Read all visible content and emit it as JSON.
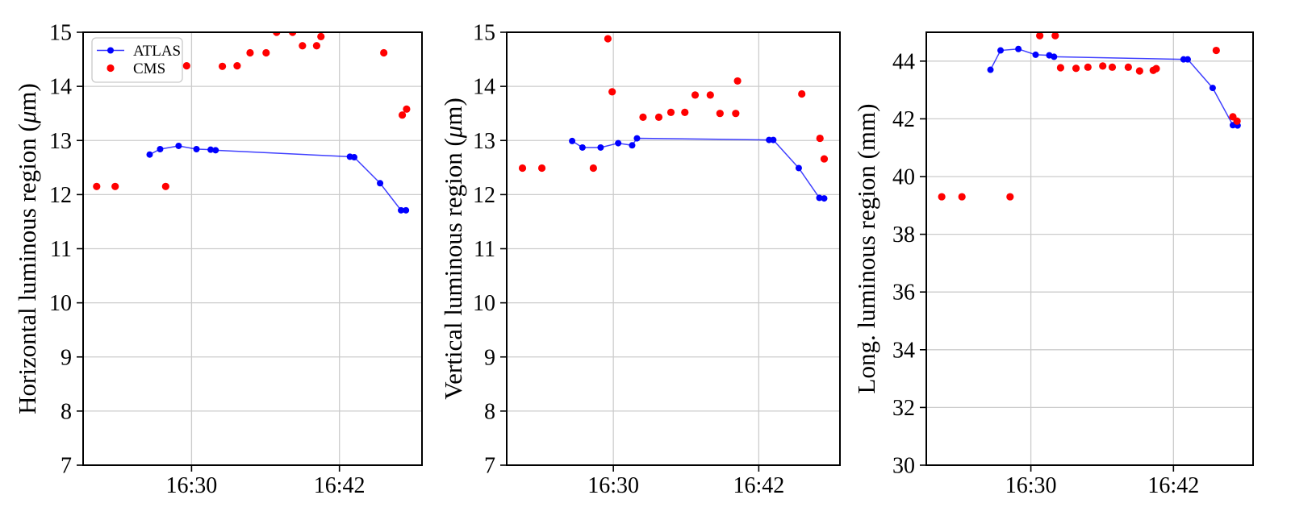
{
  "figure": {
    "background": "#ffffff",
    "grid_color": "#cccccc",
    "spine_color": "#000000",
    "atlas_color": "#0000ff",
    "cms_color": "#ff0000",
    "x_unit": "time (16:MM)",
    "legend": {
      "entries": [
        {
          "label": "ATLAS",
          "marker": "line-dot",
          "color": "#0000ff"
        },
        {
          "label": "CMS",
          "marker": "dot",
          "color": "#ff0000"
        }
      ]
    }
  },
  "chart_data": [
    {
      "type": "scatter",
      "title": "",
      "ylabel": "Horizontal luminous region (μm)",
      "xlabel": "",
      "ylim": [
        7,
        15
      ],
      "yticks": [
        7,
        8,
        9,
        10,
        11,
        12,
        13,
        14,
        15
      ],
      "xlim_minutes_after_1600": [
        21.2,
        48.7
      ],
      "xticks": [
        {
          "label": "16:30",
          "minutes": 30
        },
        {
          "label": "16:42",
          "minutes": 42
        }
      ],
      "grid": true,
      "legend_position": "upper-left",
      "series": [
        {
          "name": "ATLAS",
          "style": "line+scatter",
          "color": "#0000ff",
          "x": [
            26.6,
            27.45,
            28.95,
            30.4,
            31.55,
            31.95,
            42.85,
            43.2,
            45.3,
            47.0,
            47.4
          ],
          "y": [
            12.74,
            12.84,
            12.9,
            12.84,
            12.83,
            12.82,
            12.7,
            12.69,
            12.21,
            11.71,
            11.71
          ]
        },
        {
          "name": "CMS",
          "style": "scatter",
          "color": "#ff0000",
          "x": [
            22.3,
            23.8,
            27.9,
            29.6,
            32.5,
            33.7,
            34.75,
            36.05,
            36.9,
            38.2,
            39.0,
            40.15,
            40.5,
            45.6,
            47.1,
            47.45
          ],
          "y": [
            12.15,
            12.15,
            12.15,
            14.38,
            14.37,
            14.38,
            14.62,
            14.62,
            15.0,
            15.0,
            14.75,
            14.75,
            14.92,
            14.62,
            13.47,
            13.58
          ]
        }
      ]
    },
    {
      "type": "scatter",
      "title": "",
      "ylabel": "Vertical luminous region (μm)",
      "xlabel": "",
      "ylim": [
        7,
        15
      ],
      "yticks": [
        7,
        8,
        9,
        10,
        11,
        12,
        13,
        14,
        15
      ],
      "xlim_minutes_after_1600": [
        21.2,
        48.7
      ],
      "xticks": [
        {
          "label": "16:30",
          "minutes": 30
        },
        {
          "label": "16:42",
          "minutes": 42
        }
      ],
      "grid": true,
      "legend_position": "none",
      "series": [
        {
          "name": "ATLAS",
          "style": "line+scatter",
          "color": "#0000ff",
          "x": [
            26.6,
            27.45,
            28.95,
            30.4,
            31.55,
            31.95,
            42.85,
            43.2,
            45.3,
            47.0,
            47.4
          ],
          "y": [
            12.99,
            12.87,
            12.87,
            12.95,
            12.91,
            13.04,
            13.01,
            13.01,
            12.49,
            11.94,
            11.93
          ]
        },
        {
          "name": "CMS",
          "style": "scatter",
          "color": "#ff0000",
          "x": [
            22.5,
            24.1,
            28.35,
            29.55,
            29.9,
            32.45,
            33.75,
            34.75,
            35.9,
            36.75,
            38.0,
            38.8,
            40.1,
            40.25,
            45.55,
            47.05,
            47.4
          ],
          "y": [
            12.49,
            12.49,
            12.49,
            14.88,
            13.9,
            13.43,
            13.43,
            13.52,
            13.52,
            13.84,
            13.84,
            13.5,
            13.5,
            14.1,
            13.86,
            13.04,
            12.66
          ]
        }
      ]
    },
    {
      "type": "scatter",
      "title": "",
      "ylabel": "Long. luminous region (mm)",
      "xlabel": "",
      "ylim": [
        30,
        45
      ],
      "yticks": [
        30,
        32,
        34,
        36,
        38,
        40,
        42,
        44
      ],
      "xlim_minutes_after_1600": [
        21.2,
        48.7
      ],
      "xticks": [
        {
          "label": "16:30",
          "minutes": 30
        },
        {
          "label": "16:42",
          "minutes": 42
        }
      ],
      "grid": true,
      "legend_position": "none",
      "series": [
        {
          "name": "ATLAS",
          "style": "line+scatter",
          "color": "#0000ff",
          "x": [
            26.6,
            27.45,
            28.95,
            30.4,
            31.55,
            31.95,
            42.85,
            43.2,
            45.3,
            47.0,
            47.4
          ],
          "y": [
            43.7,
            44.37,
            44.42,
            44.22,
            44.2,
            44.15,
            44.06,
            44.06,
            43.07,
            41.78,
            41.77
          ]
        },
        {
          "name": "CMS",
          "style": "scatter",
          "color": "#ff0000",
          "x": [
            22.5,
            24.2,
            28.25,
            30.75,
            32.05,
            32.5,
            33.8,
            34.8,
            36.05,
            36.85,
            38.2,
            39.15,
            40.3,
            40.55,
            45.6,
            47.0,
            47.35
          ],
          "y": [
            39.3,
            39.3,
            39.3,
            44.88,
            44.88,
            43.77,
            43.75,
            43.79,
            43.83,
            43.79,
            43.79,
            43.66,
            43.68,
            43.74,
            44.37,
            42.07,
            41.92
          ]
        }
      ]
    }
  ]
}
